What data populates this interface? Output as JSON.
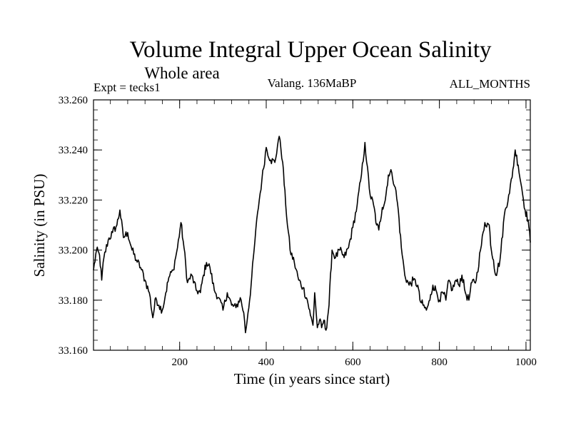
{
  "chart_data": {
    "type": "line",
    "title": "Volume Integral Upper Ocean Salinity",
    "subtitle": "Whole area",
    "left_note": "Expt = tecks1",
    "center_note": "Valang. 136MaBP",
    "right_note": "ALL_MONTHS",
    "xlabel": "Time (in years since start)",
    "ylabel": "Salinity (in PSU)",
    "xlim": [
      1,
      1010
    ],
    "ylim": [
      33.16,
      33.26
    ],
    "x_ticks": [
      200,
      400,
      600,
      800,
      1000
    ],
    "x_tick_labels": [
      "200",
      "400",
      "600",
      "800",
      "1000"
    ],
    "y_ticks": [
      33.16,
      33.18,
      33.2,
      33.22,
      33.24,
      33.26
    ],
    "y_tick_labels": [
      "33.160",
      "33.180",
      "33.200",
      "33.220",
      "33.240",
      "33.260"
    ],
    "series": [
      {
        "name": "salinity",
        "color": "#000000",
        "x": [
          1,
          8,
          15,
          20,
          25,
          35,
          45,
          55,
          62,
          70,
          80,
          90,
          100,
          110,
          120,
          130,
          138,
          145,
          152,
          160,
          168,
          175,
          185,
          195,
          203,
          210,
          218,
          228,
          238,
          248,
          255,
          262,
          270,
          280,
          290,
          300,
          310,
          320,
          330,
          340,
          348,
          352,
          358,
          365,
          372,
          380,
          390,
          400,
          410,
          420,
          428,
          432,
          438,
          445,
          455,
          465,
          475,
          485,
          495,
          502,
          508,
          512,
          518,
          523,
          528,
          533,
          538,
          545,
          552,
          560,
          570,
          580,
          590,
          600,
          610,
          620,
          628,
          632,
          640,
          648,
          655,
          660,
          668,
          675,
          682,
          690,
          698,
          705,
          712,
          720,
          730,
          740,
          750,
          755,
          762,
          770,
          778,
          785,
          792,
          800,
          808,
          815,
          822,
          830,
          838,
          845,
          852,
          860,
          868,
          875,
          885,
          895,
          905,
          915,
          920,
          925,
          930,
          940,
          950,
          960,
          968,
          975,
          982,
          990,
          998,
          1005,
          1010
        ],
        "values": [
          33.192,
          33.2,
          33.198,
          33.188,
          33.197,
          33.204,
          33.207,
          33.21,
          33.216,
          33.205,
          33.207,
          33.2,
          33.196,
          33.193,
          33.188,
          33.183,
          33.173,
          33.181,
          33.178,
          33.176,
          33.183,
          33.189,
          33.192,
          33.201,
          33.211,
          33.201,
          33.187,
          33.19,
          33.184,
          33.183,
          33.19,
          33.195,
          33.193,
          33.184,
          33.181,
          33.176,
          33.183,
          33.178,
          33.177,
          33.181,
          33.175,
          33.167,
          33.175,
          33.186,
          33.2,
          33.215,
          33.228,
          33.241,
          33.236,
          33.235,
          33.244,
          33.244,
          33.235,
          33.218,
          33.2,
          33.195,
          33.188,
          33.185,
          33.18,
          33.174,
          33.17,
          33.183,
          33.169,
          33.172,
          33.169,
          33.172,
          33.168,
          33.178,
          33.2,
          33.197,
          33.2,
          33.197,
          33.201,
          33.209,
          33.218,
          33.23,
          33.243,
          33.235,
          33.222,
          33.218,
          33.21,
          33.208,
          33.217,
          33.22,
          33.23,
          33.231,
          33.225,
          33.216,
          33.201,
          33.19,
          33.186,
          33.188,
          33.186,
          33.18,
          33.178,
          33.176,
          33.18,
          33.186,
          33.184,
          33.18,
          33.183,
          33.18,
          33.188,
          33.184,
          33.188,
          33.186,
          33.19,
          33.183,
          33.18,
          33.187,
          33.188,
          33.2,
          33.211,
          33.21,
          33.2,
          33.196,
          33.19,
          33.196,
          33.214,
          33.222,
          33.229,
          33.24,
          33.234,
          33.225,
          33.216,
          33.212,
          33.203
        ]
      }
    ]
  }
}
